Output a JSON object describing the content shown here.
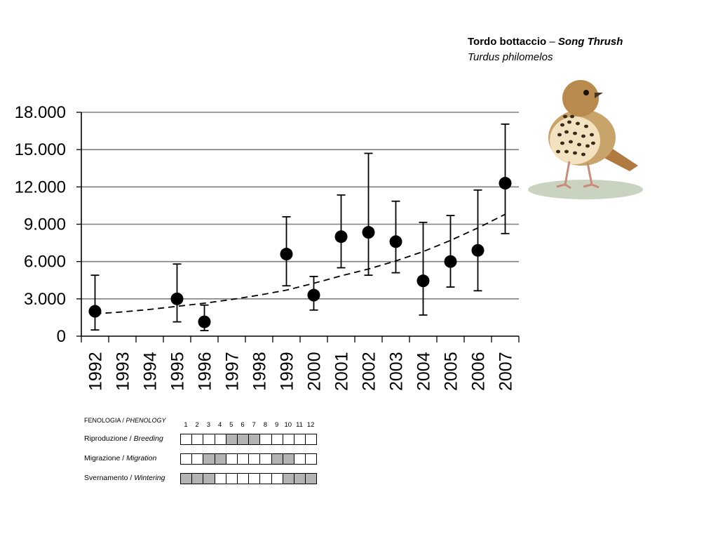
{
  "header": {
    "common_it": "Tordo bottaccio",
    "dash": " – ",
    "common_en": "Song Thrush",
    "latin": "Turdus philomelos"
  },
  "chart_data": {
    "type": "scatter",
    "categories": [
      "1992",
      "1993",
      "1994",
      "1995",
      "1996",
      "1997",
      "1998",
      "1999",
      "2000",
      "2001",
      "2002",
      "2003",
      "2004",
      "2005",
      "2006",
      "2007"
    ],
    "y_tick_labels": [
      "0",
      "3.000",
      "6.000",
      "9.000",
      "12.000",
      "15.000",
      "18.000"
    ],
    "y_ticks": [
      0,
      3000,
      6000,
      9000,
      12000,
      15000,
      18000
    ],
    "ylim": [
      0,
      18000
    ],
    "grid": true,
    "series": [
      {
        "values": [
          2000,
          null,
          null,
          3000,
          1150,
          null,
          null,
          6600,
          3300,
          8000,
          8350,
          7600,
          4450,
          6000,
          6900,
          12300
        ],
        "lower": [
          500,
          null,
          null,
          1150,
          450,
          null,
          null,
          4050,
          2100,
          5500,
          4900,
          5100,
          1700,
          3950,
          3650,
          8250
        ],
        "upper": [
          4900,
          null,
          null,
          5800,
          2500,
          null,
          null,
          9600,
          4800,
          11350,
          14700,
          10850,
          9150,
          9700,
          11750,
          17050
        ]
      }
    ],
    "trend": {
      "style": "dashed",
      "values": [
        1800,
        1950,
        2150,
        2400,
        2650,
        2950,
        3300,
        3700,
        4250,
        4850,
        5400,
        6050,
        6800,
        7700,
        8700,
        9800
      ]
    }
  },
  "phenology": {
    "title_it": "FENOLOGIA / ",
    "title_en": "PHENOLOGY",
    "months": [
      "1",
      "2",
      "3",
      "4",
      "5",
      "6",
      "7",
      "8",
      "9",
      "10",
      "11",
      "12"
    ],
    "rows": [
      {
        "label_it": "Riproduzione / ",
        "label_en": "Breeding",
        "active_months": [
          5,
          6,
          7
        ]
      },
      {
        "label_it": "Migrazione / ",
        "label_en": "Migration",
        "active_months": [
          3,
          4,
          9,
          10
        ]
      },
      {
        "label_it": "Svernamento / ",
        "label_en": "Wintering",
        "active_months": [
          1,
          2,
          3,
          10,
          11,
          12
        ]
      }
    ],
    "fill_color": "#b3b3b3"
  },
  "colors": {
    "gridline": "#808080",
    "marker": "#000000",
    "bird_body": "#c9a46a",
    "bird_breast": "#f2e2bf",
    "bird_spots": "#3a2a18",
    "ground": "#a7b594"
  }
}
